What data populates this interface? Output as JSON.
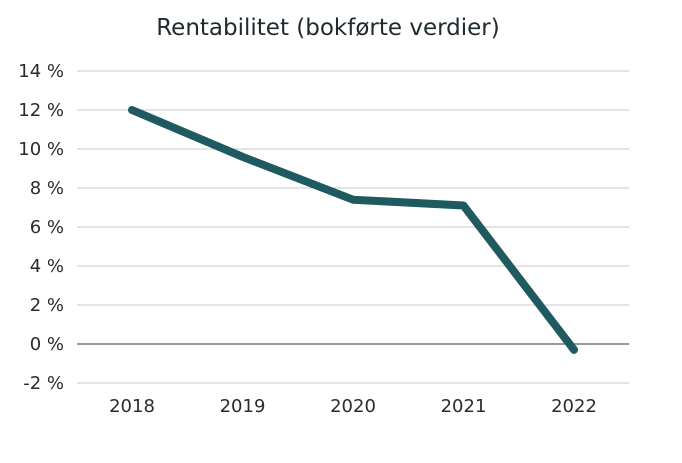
{
  "colors": {
    "background": "#ffffff",
    "line": "#1e5a60",
    "grid": "#c8c8c8",
    "zero_line": "#5a5a5a",
    "text": "#2b2b2b"
  },
  "chart_data": {
    "type": "line",
    "title": "Rentabilitet (bokførte verdier)",
    "xlabel": "",
    "ylabel": "",
    "categories": [
      "2018",
      "2019",
      "2020",
      "2021",
      "2022"
    ],
    "series": [
      {
        "name": "Rentabilitet",
        "values": [
          12.0,
          9.6,
          7.4,
          7.1,
          -0.3
        ]
      }
    ],
    "ylim": [
      -2,
      14
    ],
    "y_ticks": [
      -2,
      0,
      2,
      4,
      6,
      8,
      10,
      12,
      14
    ],
    "y_tick_labels": [
      "-2 %",
      "0 %",
      "2 %",
      "4 %",
      "6 %",
      "8 %",
      "10 %",
      "12 %",
      "14 %"
    ],
    "grid": true,
    "legend": "none"
  }
}
